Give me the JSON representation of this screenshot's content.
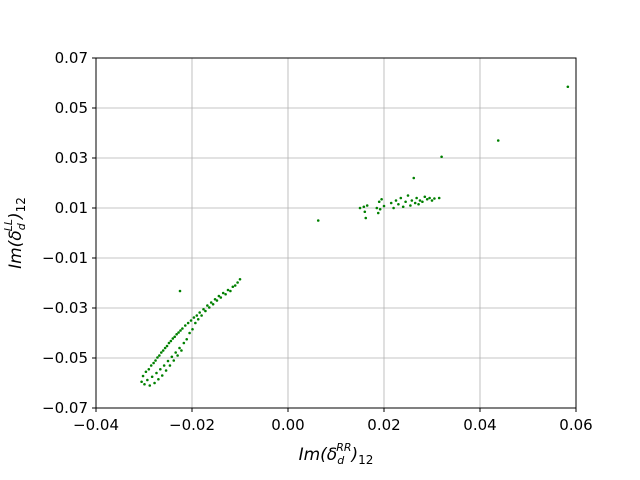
{
  "chart_data": {
    "type": "scatter",
    "title": "",
    "xlabel": {
      "base": "Im(δ",
      "sub": "d",
      "sup": "RR",
      "tail": ")",
      "tail_sub": "12"
    },
    "ylabel": {
      "base": "Im(δ",
      "sub": "d",
      "sup": "LL",
      "tail": ")",
      "tail_sub": "12"
    },
    "xlim": [
      -0.04,
      0.06
    ],
    "ylim": [
      -0.07,
      0.07
    ],
    "xticks": [
      -0.04,
      -0.02,
      0.0,
      0.02,
      0.04,
      0.06
    ],
    "xtick_labels": [
      "−0.04",
      "−0.02",
      "0.00",
      "0.02",
      "0.04",
      "0.06"
    ],
    "yticks": [
      -0.07,
      -0.05,
      -0.03,
      -0.01,
      0.01,
      0.03,
      0.05,
      0.07
    ],
    "ytick_labels": [
      "−0.07",
      "−0.05",
      "−0.03",
      "−0.01",
      "0.01",
      "0.03",
      "0.05",
      "0.07"
    ],
    "grid": true,
    "marker_color": "#008000",
    "series": [
      {
        "points": [
          [
            -0.0305,
            -0.0595
          ],
          [
            -0.0302,
            -0.0572
          ],
          [
            -0.0299,
            -0.0605
          ],
          [
            -0.0296,
            -0.0555
          ],
          [
            -0.0293,
            -0.0588
          ],
          [
            -0.029,
            -0.0545
          ],
          [
            -0.0288,
            -0.061
          ],
          [
            -0.0285,
            -0.053
          ],
          [
            -0.0283,
            -0.0575
          ],
          [
            -0.028,
            -0.052
          ],
          [
            -0.0278,
            -0.06
          ],
          [
            -0.0276,
            -0.051
          ],
          [
            -0.0274,
            -0.056
          ],
          [
            -0.0272,
            -0.0498
          ],
          [
            -0.027,
            -0.0585
          ],
          [
            -0.0268,
            -0.049
          ],
          [
            -0.0266,
            -0.0545
          ],
          [
            -0.0264,
            -0.0478
          ],
          [
            -0.0262,
            -0.057
          ],
          [
            -0.026,
            -0.047
          ],
          [
            -0.0258,
            -0.053
          ],
          [
            -0.0256,
            -0.046
          ],
          [
            -0.0254,
            -0.055
          ],
          [
            -0.0252,
            -0.0452
          ],
          [
            -0.025,
            -0.0512
          ],
          [
            -0.0248,
            -0.044
          ],
          [
            -0.0246,
            -0.053
          ],
          [
            -0.0244,
            -0.0432
          ],
          [
            -0.0242,
            -0.0495
          ],
          [
            -0.024,
            -0.0422
          ],
          [
            -0.0238,
            -0.051
          ],
          [
            -0.0236,
            -0.0415
          ],
          [
            -0.0234,
            -0.0478
          ],
          [
            -0.0232,
            -0.0405
          ],
          [
            -0.023,
            -0.049
          ],
          [
            -0.0228,
            -0.0398
          ],
          [
            -0.0226,
            -0.046
          ],
          [
            -0.0224,
            -0.039
          ],
          [
            -0.0222,
            -0.047
          ],
          [
            -0.022,
            -0.0382
          ],
          [
            -0.0217,
            -0.044
          ],
          [
            -0.0214,
            -0.037
          ],
          [
            -0.0211,
            -0.0425
          ],
          [
            -0.0208,
            -0.036
          ],
          [
            -0.0205,
            -0.04
          ],
          [
            -0.0202,
            -0.035
          ],
          [
            -0.0199,
            -0.0385
          ],
          [
            -0.0196,
            -0.0338
          ],
          [
            -0.0193,
            -0.036
          ],
          [
            -0.019,
            -0.033
          ],
          [
            -0.0187,
            -0.0345
          ],
          [
            -0.0184,
            -0.0318
          ],
          [
            -0.018,
            -0.033
          ],
          [
            -0.0176,
            -0.0305
          ],
          [
            -0.0172,
            -0.0312
          ],
          [
            -0.0168,
            -0.029
          ],
          [
            -0.0164,
            -0.0298
          ],
          [
            -0.016,
            -0.0278
          ],
          [
            -0.0156,
            -0.0285
          ],
          [
            -0.0152,
            -0.0265
          ],
          [
            -0.0148,
            -0.027
          ],
          [
            -0.0144,
            -0.0252
          ],
          [
            -0.014,
            -0.0258
          ],
          [
            -0.0135,
            -0.024
          ],
          [
            -0.013,
            -0.0245
          ],
          [
            -0.0125,
            -0.0228
          ],
          [
            -0.012,
            -0.0232
          ],
          [
            -0.0115,
            -0.0215
          ],
          [
            -0.011,
            -0.021
          ],
          [
            -0.0105,
            -0.0198
          ],
          [
            -0.01,
            -0.0185
          ],
          [
            -0.0225,
            -0.0232
          ],
          [
            0.0063,
            0.005
          ],
          [
            0.015,
            0.01
          ],
          [
            0.0158,
            0.0105
          ],
          [
            0.016,
            0.0085
          ],
          [
            0.0162,
            0.006
          ],
          [
            0.0165,
            0.011
          ],
          [
            0.0185,
            0.01
          ],
          [
            0.0188,
            0.008
          ],
          [
            0.019,
            0.0125
          ],
          [
            0.0192,
            0.0095
          ],
          [
            0.0195,
            0.0135
          ],
          [
            0.02,
            0.0108
          ],
          [
            0.0215,
            0.012
          ],
          [
            0.022,
            0.01
          ],
          [
            0.0225,
            0.013
          ],
          [
            0.023,
            0.0115
          ],
          [
            0.0235,
            0.014
          ],
          [
            0.024,
            0.0105
          ],
          [
            0.0245,
            0.0125
          ],
          [
            0.025,
            0.015
          ],
          [
            0.0255,
            0.011
          ],
          [
            0.0258,
            0.013
          ],
          [
            0.0262,
            0.022
          ],
          [
            0.0265,
            0.012
          ],
          [
            0.0268,
            0.014
          ],
          [
            0.0272,
            0.0115
          ],
          [
            0.0275,
            0.013
          ],
          [
            0.028,
            0.0125
          ],
          [
            0.0285,
            0.0145
          ],
          [
            0.029,
            0.0135
          ],
          [
            0.0295,
            0.014
          ],
          [
            0.03,
            0.013
          ],
          [
            0.0305,
            0.0138
          ],
          [
            0.0315,
            0.014
          ],
          [
            0.032,
            0.0305
          ],
          [
            0.0438,
            0.037
          ],
          [
            0.0583,
            0.0585
          ]
        ]
      }
    ]
  }
}
